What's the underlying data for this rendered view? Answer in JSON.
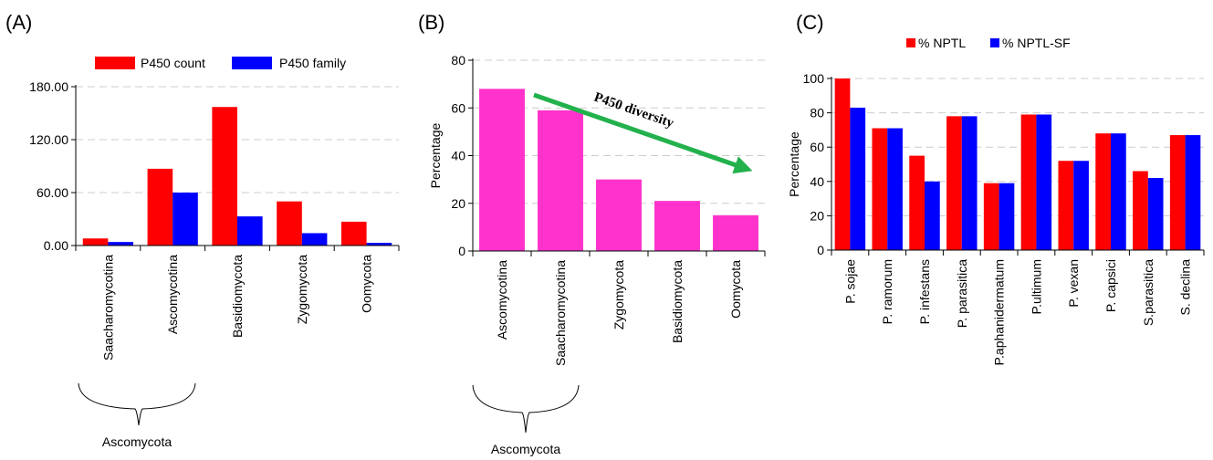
{
  "colors": {
    "red": "#ff0000",
    "blue": "#0000ff",
    "magenta": "#ff33cc",
    "green": "#22b14c",
    "grid": "#cccccc"
  },
  "panel_labels": [
    "(A)",
    "(B)",
    "(C)"
  ],
  "chart_data": [
    {
      "type": "bar",
      "title": "",
      "xlabel": "",
      "ylabel": "",
      "categories": [
        "Saacharomycotina",
        "Ascomycotina",
        "Basidiomycota",
        "Zygomycota",
        "Oomycota"
      ],
      "series": [
        {
          "name": "P450 count",
          "color": "#ff0000",
          "values": [
            8,
            87,
            157,
            50,
            27
          ]
        },
        {
          "name": "P450 family",
          "color": "#0000ff",
          "values": [
            4,
            60,
            33,
            14,
            3
          ]
        }
      ],
      "ylim": [
        0,
        180
      ],
      "yticks": [
        "0.00",
        "60.00",
        "120.00",
        "180.00"
      ],
      "grid": true,
      "legend": "top",
      "bracket_label": "Ascomycota"
    },
    {
      "type": "bar",
      "title": "",
      "xlabel": "",
      "ylabel": "Percentage",
      "categories": [
        "Ascomycotina",
        "Saacharomycotina",
        "Zygomycota",
        "Basidiomycota",
        "Oomycota"
      ],
      "series": [
        {
          "color": "#ff33cc",
          "values": [
            68,
            59,
            30,
            21,
            15
          ]
        }
      ],
      "ylim": [
        0,
        80
      ],
      "yticks": [
        "0",
        "20",
        "40",
        "60",
        "80"
      ],
      "grid": true,
      "annotation": "P450 diversity",
      "bracket_label": "Ascomycota"
    },
    {
      "type": "bar",
      "title": "",
      "xlabel": "",
      "ylabel": "Percentage",
      "categories": [
        "P. sojae",
        "P. ramorum",
        "P. infestans",
        "P. parasitica",
        "P.aphanidermatum",
        "P.ultimum",
        "P. vexan",
        "P. capsici",
        "S.parasitica",
        "S. declina"
      ],
      "series": [
        {
          "name": "% NPTL",
          "color": "#ff0000",
          "values": [
            100,
            71,
            55,
            78,
            39,
            79,
            52,
            68,
            46,
            67
          ]
        },
        {
          "name": "% NPTL-SF",
          "color": "#0000ff",
          "values": [
            83,
            71,
            40,
            78,
            39,
            79,
            52,
            68,
            42,
            67
          ]
        }
      ],
      "ylim": [
        0,
        100
      ],
      "yticks": [
        "0",
        "20",
        "40",
        "60",
        "80",
        "100"
      ],
      "grid": true,
      "legend": "top"
    }
  ]
}
